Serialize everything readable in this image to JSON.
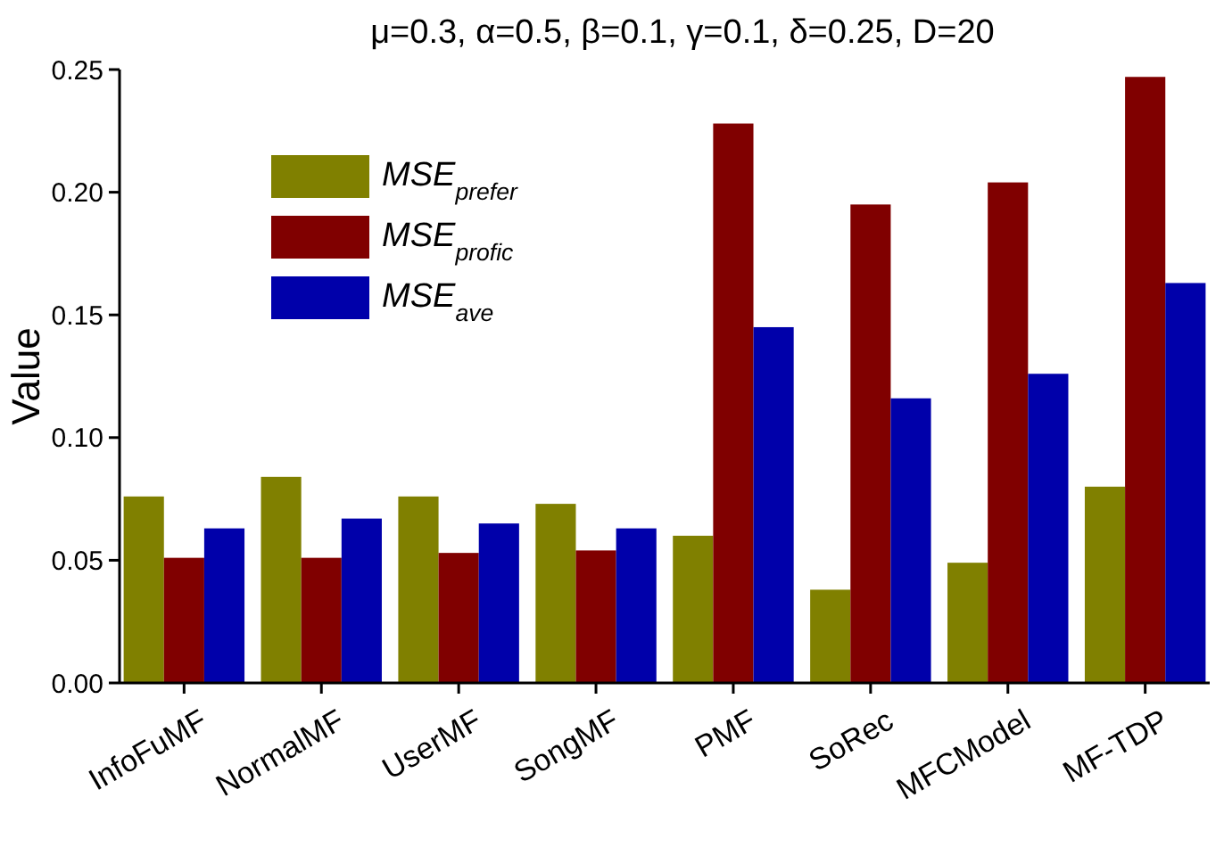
{
  "chart_data": {
    "type": "bar",
    "title": "μ=0.3, α=0.5, β=0.1, γ=0.1, δ=0.25, D=20",
    "ylabel": "Value",
    "categories": [
      "InfoFuMF",
      "NormalMF",
      "UserMF",
      "SongMF",
      "PMF",
      "SoRec",
      "MFCModel",
      "MF-TDP"
    ],
    "series": [
      {
        "name": "MSE$_{prefer}$",
        "color": "#808000",
        "values": [
          0.076,
          0.084,
          0.076,
          0.073,
          0.06,
          0.038,
          0.049,
          0.08
        ]
      },
      {
        "name": "MSE$_{profic}$",
        "color": "#800000",
        "values": [
          0.051,
          0.051,
          0.053,
          0.054,
          0.228,
          0.195,
          0.204,
          0.247
        ]
      },
      {
        "name": "MSE$_{ave}$",
        "color": "#0000aa",
        "values": [
          0.063,
          0.067,
          0.065,
          0.063,
          0.145,
          0.116,
          0.126,
          0.163
        ]
      }
    ],
    "ylim": [
      0,
      0.25
    ],
    "yticks": [
      {
        "value": 0,
        "label": "0.00"
      },
      {
        "value": 0.05,
        "label": "0.05"
      },
      {
        "value": 0.1,
        "label": "0.10"
      },
      {
        "value": 0.15,
        "label": "0.15"
      },
      {
        "value": 0.2,
        "label": "0.20"
      },
      {
        "value": 0.25,
        "label": "0.25"
      }
    ],
    "legend": "top left",
    "grid": false
  }
}
